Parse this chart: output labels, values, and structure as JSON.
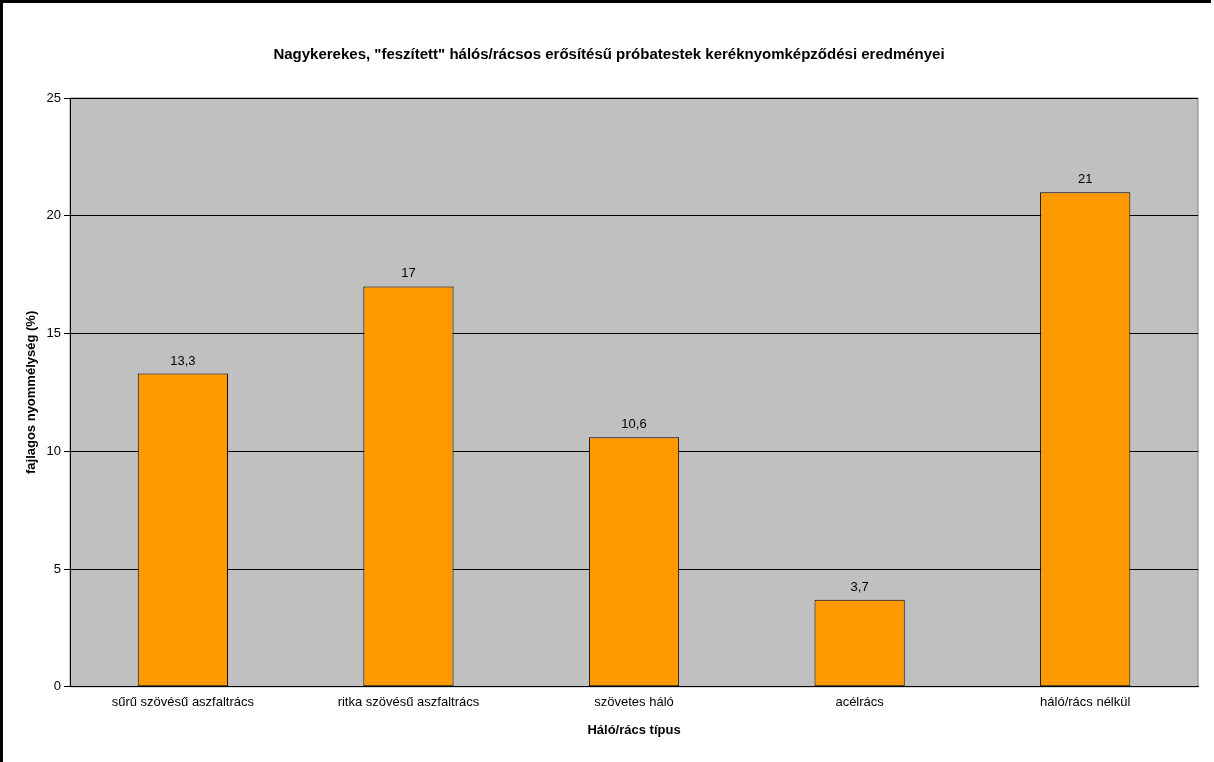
{
  "chart_data": {
    "type": "bar",
    "title": "Nagykerekes, \"feszített\" hálós/rácsos erősítésű próbatestek keréknyomképződési eredményei",
    "xlabel": "Háló/rács típus",
    "ylabel": "fajlagos nyommélység (%)",
    "categories": [
      "sűrű szövésű aszfaltrács",
      "ritka szövésű aszfaltrács",
      "szövetes háló",
      "acélrács",
      "háló/rács nélkül"
    ],
    "values": [
      13.3,
      17,
      10.6,
      3.7,
      21
    ],
    "value_labels": [
      "13,3",
      "17",
      "10,6",
      "3,7",
      "21"
    ],
    "color": "#ff9900",
    "ylim": [
      0,
      25
    ],
    "yticks": [
      0,
      5,
      10,
      15,
      20,
      25
    ],
    "grid": "y",
    "legend": false
  }
}
